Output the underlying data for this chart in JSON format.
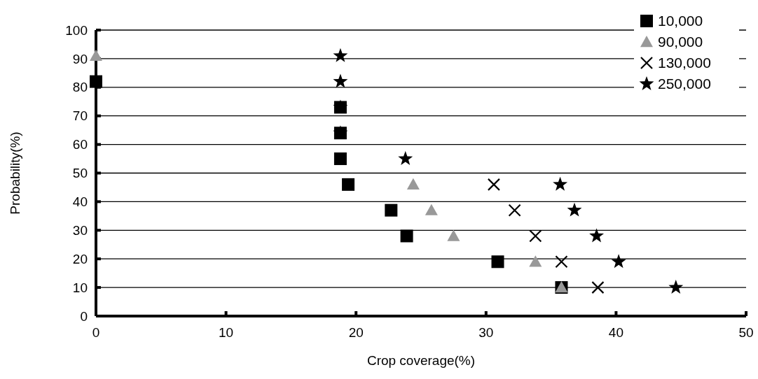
{
  "chart_data": {
    "type": "scatter",
    "xlabel": "Crop coverage(%)",
    "ylabel": "Probability(%)",
    "xlim": [
      0,
      50
    ],
    "ylim": [
      0,
      100
    ],
    "xticks": [
      0,
      10,
      20,
      30,
      40,
      50
    ],
    "yticks": [
      0,
      10,
      20,
      30,
      40,
      50,
      60,
      70,
      80,
      90,
      100
    ],
    "grid": "y",
    "legend": "top right",
    "series": [
      {
        "name": "10,000",
        "color": "#000000",
        "marker": "square",
        "x": [
          0,
          18.8,
          18.8,
          18.8,
          19.4,
          22.7,
          23.9,
          30.9,
          35.8
        ],
        "values": [
          82,
          73,
          64,
          55,
          46,
          37,
          28,
          19,
          10
        ]
      },
      {
        "name": "90,000",
        "color": "#999999",
        "marker": "triangle",
        "x": [
          0,
          24.4,
          25.8,
          27.5,
          33.8,
          35.8
        ],
        "values": [
          91,
          46,
          37,
          28,
          19,
          10
        ]
      },
      {
        "name": "130,000",
        "color": "#000000",
        "marker": "cross",
        "x": [
          30.6,
          32.2,
          33.8,
          35.8,
          38.6
        ],
        "values": [
          46,
          37,
          28,
          19,
          10
        ]
      },
      {
        "name": "250,000",
        "color": "#000000",
        "marker": "star",
        "x": [
          18.8,
          18.8,
          18.8,
          18.8,
          23.8,
          35.7,
          36.8,
          38.5,
          40.2,
          44.6
        ],
        "values": [
          91,
          82,
          73,
          64,
          55,
          46,
          37,
          28,
          19,
          10
        ]
      }
    ]
  }
}
